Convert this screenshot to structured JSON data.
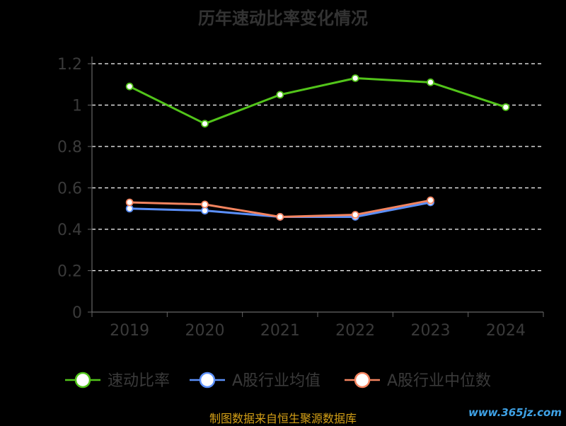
{
  "chart_data": {
    "type": "line",
    "title": "历年速动比率变化情况",
    "categories": [
      "2019",
      "2020",
      "2021",
      "2022",
      "2023",
      "2024"
    ],
    "ylim": [
      0,
      1.2
    ],
    "yticks": [
      "0",
      "0.2",
      "0.4",
      "0.6",
      "0.8",
      "1",
      "1.2"
    ],
    "grid": true,
    "legend_position": "bottom",
    "series": [
      {
        "name": "速动比率",
        "color": "#52c41a",
        "values": [
          1.09,
          0.91,
          1.05,
          1.13,
          1.11,
          0.99
        ]
      },
      {
        "name": "A股行业均值",
        "color": "#5b8ff9",
        "values": [
          0.5,
          0.49,
          0.46,
          0.46,
          0.53,
          null
        ]
      },
      {
        "name": "A股行业中位数",
        "color": "#f4845f",
        "values": [
          0.53,
          0.52,
          0.46,
          0.47,
          0.54,
          null
        ]
      }
    ]
  },
  "source": "制图数据来自恒生聚源数据库",
  "watermark": "www.365jz.com"
}
